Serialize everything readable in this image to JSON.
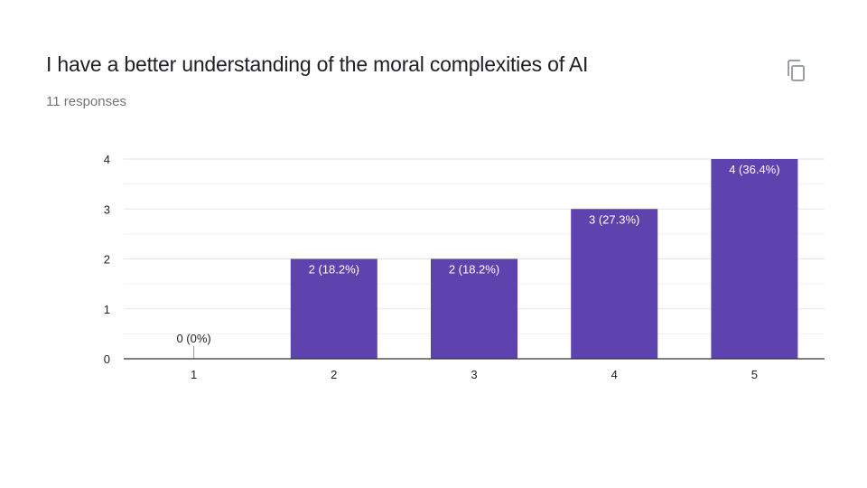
{
  "question": {
    "title": "I have a better understanding of the moral complexities of AI",
    "responses": "11 responses"
  },
  "toolbar": {
    "copy_icon": "copy-icon"
  },
  "colors": {
    "bar": "#5e43ae",
    "grid": "#e6e6e6",
    "axis": "#333333",
    "text": "#222222",
    "bar_label": "#ffffff",
    "icon": "#9aa0a6"
  },
  "chart_data": {
    "type": "bar",
    "categories": [
      "1",
      "2",
      "3",
      "4",
      "5"
    ],
    "values": [
      0,
      2,
      2,
      3,
      4
    ],
    "data_labels": [
      "0 (0%)",
      "2 (18.2%)",
      "2 (18.2%)",
      "3 (27.3%)",
      "4 (36.4%)"
    ],
    "ylim": [
      0,
      4
    ],
    "yticks": [
      0,
      1,
      2,
      3,
      4
    ],
    "xlabel": "",
    "ylabel": "",
    "grid": true
  }
}
